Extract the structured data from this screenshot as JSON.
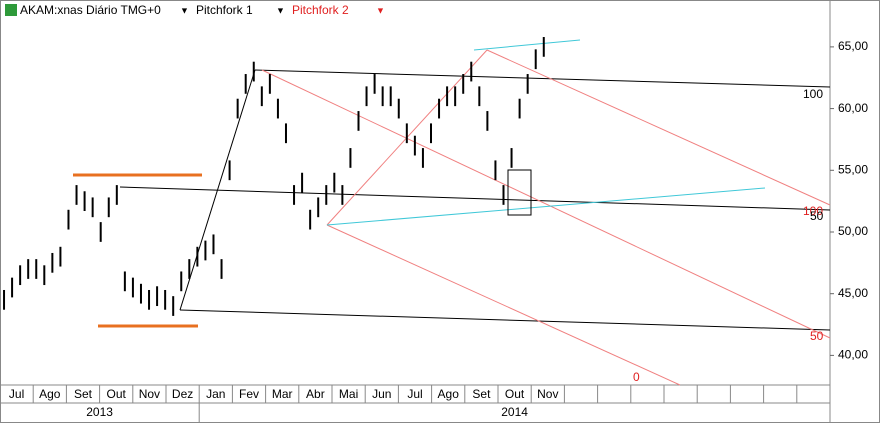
{
  "chart_data": {
    "type": "range-bar",
    "title": "AKAM:xnas Diário TMG+0",
    "tools": [
      {
        "name": "Pitchfork 1",
        "color": "#000000"
      },
      {
        "name": "Pitchfork 2",
        "color": "#e02020"
      }
    ],
    "categories": [
      "Jul",
      "Ago",
      "Set",
      "Out",
      "Nov",
      "Dez",
      "Jan",
      "Fev",
      "Mar",
      "Abr",
      "Mai",
      "Jun",
      "Jul",
      "Ago",
      "Set",
      "Out",
      "Nov",
      null,
      null,
      null,
      null,
      null,
      null,
      null,
      null
    ],
    "years": [
      "2013",
      "2014"
    ],
    "low": [
      43.7,
      44.7,
      45.7,
      46.2,
      46.2,
      45.7,
      46.7,
      47.2,
      50.2,
      52.2,
      51.7,
      51.2,
      49.2,
      51.2,
      52.2,
      45.2,
      44.7,
      44.2,
      43.7,
      44,
      43.7,
      43.2,
      45.2,
      46.2,
      47.2,
      47.7,
      48.2,
      46.2,
      54.2,
      59.2,
      61.2,
      62.2,
      60.2,
      61.2,
      59.2,
      57.2,
      52.2,
      53.2,
      50.2,
      51.2,
      52.2,
      53.2,
      52.2,
      55.2,
      58.2,
      60.2,
      61.2,
      60.2,
      60.2,
      59.2,
      57.2,
      56.2,
      55.2,
      57.2,
      59.2,
      60.2,
      60.2,
      61.2,
      62.2,
      60.2,
      58.2,
      54.2,
      52.2,
      55.2,
      59.2,
      61.2,
      63.2,
      64.2
    ],
    "high": [
      45.3,
      46.3,
      47.3,
      47.8,
      47.8,
      47.3,
      48.3,
      48.8,
      51.8,
      53.8,
      53.3,
      52.8,
      50.8,
      52.8,
      53.8,
      46.8,
      46.3,
      45.8,
      45.3,
      45.6,
      45.3,
      44.8,
      46.8,
      47.8,
      48.8,
      49.3,
      49.8,
      47.8,
      55.8,
      60.8,
      62.8,
      63.8,
      61.8,
      62.8,
      60.8,
      58.8,
      53.8,
      54.8,
      51.8,
      52.8,
      53.8,
      54.8,
      53.8,
      56.8,
      59.8,
      61.8,
      62.8,
      61.8,
      61.8,
      60.8,
      58.8,
      57.8,
      56.8,
      58.8,
      60.8,
      61.8,
      61.8,
      62.8,
      63.8,
      61.8,
      59.8,
      55.8,
      53.8,
      56.8,
      60.8,
      62.8,
      64.8,
      65.8
    ],
    "color": "#000000",
    "ylim": [
      37.6,
      68.8
    ],
    "yticks": [
      {
        "value": 40,
        "label": "40,00"
      },
      {
        "value": 45,
        "label": "45,00"
      },
      {
        "value": 50,
        "label": "50,00"
      },
      {
        "value": 55,
        "label": "55,00"
      },
      {
        "value": 60,
        "label": "60,00"
      },
      {
        "value": 65,
        "label": "65,00"
      }
    ],
    "annotations": [
      "100",
      "100",
      "50",
      "50",
      "0"
    ]
  }
}
